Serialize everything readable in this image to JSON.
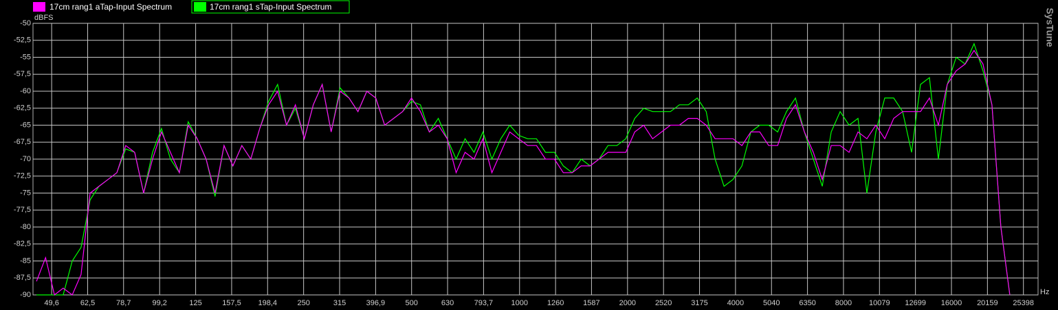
{
  "chart_data": {
    "type": "line",
    "x_label": "Hz",
    "y_label": "dBFS",
    "brand": "SysTune",
    "log_x": true,
    "grid": true,
    "xlim": [
      44,
      27900
    ],
    "ylim": [
      -90,
      -50
    ],
    "xticks": [
      {
        "value": 49.6,
        "label": "49,6"
      },
      {
        "value": 62.5,
        "label": "62,5"
      },
      {
        "value": 78.7,
        "label": "78,7"
      },
      {
        "value": 99.2,
        "label": "99,2"
      },
      125,
      {
        "value": 157.5,
        "label": "157,5"
      },
      {
        "value": 198.4,
        "label": "198,4"
      },
      250,
      315,
      {
        "value": 396.9,
        "label": "396,9"
      },
      500,
      630,
      {
        "value": 793.7,
        "label": "793,7"
      },
      1000,
      1260,
      1587,
      2000,
      2520,
      3175,
      4000,
      5040,
      6350,
      8000,
      10079,
      12699,
      16000,
      20159,
      25398
    ],
    "yticks": [
      -50,
      {
        "value": -52.5,
        "label": "-52,5"
      },
      -55,
      {
        "value": -57.5,
        "label": "-57,5"
      },
      -60,
      {
        "value": -62.5,
        "label": "-62,5"
      },
      -65,
      {
        "value": -67.5,
        "label": "-67,5"
      },
      -70,
      {
        "value": -72.5,
        "label": "-72,5"
      },
      -75,
      {
        "value": -77.5,
        "label": "-77,5"
      },
      -80,
      {
        "value": -82.5,
        "label": "-82,5"
      },
      -85,
      {
        "value": -87.5,
        "label": "-87,5"
      },
      -90
    ],
    "x": [
      45,
      47.7,
      50.5,
      53.4,
      56.6,
      59.9,
      63.5,
      67.2,
      71.2,
      75.4,
      79.8,
      84.5,
      89.5,
      94.8,
      100.4,
      106.3,
      112.6,
      119.2,
      126.3,
      133.7,
      141.6,
      150,
      158.8,
      168.2,
      178.1,
      188.6,
      199.7,
      211.5,
      224,
      237.2,
      251.2,
      266,
      281.7,
      298.3,
      315.9,
      334.6,
      354.3,
      375.2,
      397.3,
      420.8,
      445.6,
      471.9,
      499.7,
      529.2,
      560.4,
      593.5,
      628.5,
      665.6,
      704.9,
      746.5,
      790.5,
      837.1,
      886.5,
      938.8,
      994.2,
      1053,
      1115,
      1181,
      1251,
      1324,
      1402,
      1485,
      1573,
      1666,
      1764,
      1868,
      1978,
      2095,
      2218,
      2349,
      2488,
      2635,
      2790,
      2955,
      3129,
      3314,
      3509,
      3716,
      3936,
      4168,
      4414,
      4674,
      4950,
      5242,
      5551,
      5879,
      6225,
      6593,
      6982,
      7394,
      7830,
      8292,
      8781,
      9299,
      9848,
      10429,
      11044,
      11696,
      12386,
      13116,
      13890,
      14710,
      15577,
      16497,
      17470,
      18501,
      19592,
      20748,
      21972,
      23268
    ],
    "series": [
      {
        "name": "17cm rang1 aTap-Input Spectrum",
        "color": "#ff00ff",
        "values": [
          -88,
          -84.5,
          -90,
          -89,
          -90,
          -87,
          -75,
          -74,
          -73,
          -72,
          -68,
          -69,
          -75,
          -70,
          -66,
          -69,
          -72,
          -65,
          -67,
          -70,
          -75,
          -68,
          -71,
          -68,
          -70,
          -65.5,
          -62,
          -60,
          -65,
          -62,
          -67,
          -62,
          -59,
          -66,
          -60,
          -61,
          -63,
          -60,
          -61,
          -65,
          -64,
          -63,
          -61,
          -63,
          -66,
          -65,
          -67,
          -72,
          -69,
          -70,
          -67,
          -72,
          -69,
          -66,
          -67,
          -68,
          -68,
          -70,
          -70,
          -72,
          -72,
          -71,
          -71,
          -70,
          -69,
          -69,
          -69,
          -66,
          -65,
          -67,
          -66,
          -65,
          -65,
          -64,
          -64,
          -65,
          -67,
          -67,
          -67,
          -68,
          -66,
          -66,
          -68,
          -68,
          -64,
          -62,
          -66,
          -69,
          -73,
          -68,
          -68,
          -69,
          -66,
          -67,
          -65,
          -67,
          -64,
          -63,
          -63,
          -63,
          -61,
          -65,
          -59,
          -57,
          -56,
          -54,
          -56,
          -62,
          -80,
          -90
        ]
      },
      {
        "name": "17cm rang1 sTap-Input Spectrum",
        "color": "#00ff00",
        "values": [
          -90,
          -90,
          -90,
          -90,
          -85,
          -83,
          -76,
          -74,
          -73,
          -72,
          -68.5,
          -69,
          -75,
          -69,
          -65.5,
          -70,
          -72,
          -64.5,
          -67,
          -70,
          -75.5,
          -68,
          -71,
          -68,
          -70,
          -65.5,
          -61.5,
          -59,
          -65,
          -62.5,
          -67,
          -62,
          -59,
          -66,
          -59.5,
          -61,
          -63,
          -60,
          -61,
          -65,
          -64,
          -63,
          -61.5,
          -62,
          -66,
          -64,
          -67,
          -70,
          -67,
          -69,
          -66,
          -70,
          -67,
          -65,
          -66.5,
          -67,
          -67,
          -69,
          -69,
          -71,
          -72,
          -70,
          -71,
          -70,
          -68,
          -68,
          -67,
          -64,
          -62.5,
          -63,
          -63,
          -63,
          -62,
          -62,
          -61,
          -63,
          -70,
          -74,
          -73,
          -71,
          -66,
          -65,
          -65,
          -66,
          -63,
          -61,
          -66,
          -70,
          -74,
          -66,
          -63,
          -65,
          -64,
          -75,
          -66,
          -61,
          -61,
          -63,
          -69,
          -59,
          -58,
          -70,
          -59,
          -55,
          -56,
          -53,
          -57,
          -62,
          -80,
          -90
        ]
      }
    ]
  }
}
